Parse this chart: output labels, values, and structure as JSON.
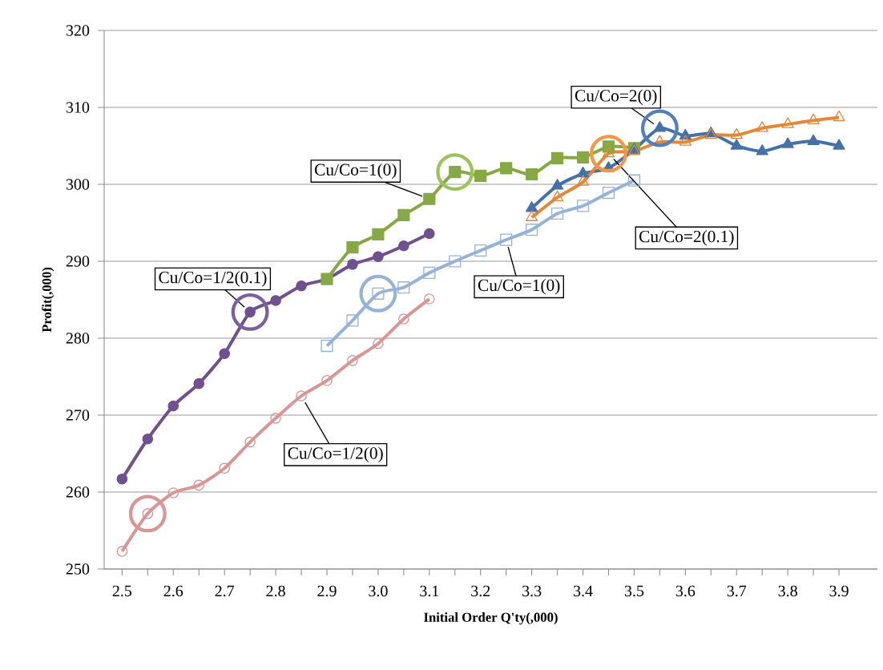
{
  "chart_data": {
    "type": "line",
    "xlabel": "Initial Order Q'ty(,000)",
    "ylabel": "Profit(,000)",
    "xlim": [
      2.465,
      3.975
    ],
    "ylim": [
      250,
      320
    ],
    "xticks": [
      2.5,
      {
        "value": 2.55,
        "label": null
      },
      2.6,
      {
        "value": 2.65,
        "label": null
      },
      2.7,
      {
        "value": 2.75,
        "label": null
      },
      2.8,
      {
        "value": 2.85,
        "label": null
      },
      2.9,
      {
        "value": 2.95,
        "label": null
      },
      {
        "value": 3.0,
        "label": "3.0"
      },
      {
        "value": 3.05,
        "label": null
      },
      3.1,
      {
        "value": 3.15,
        "label": null
      },
      3.2,
      {
        "value": 3.25,
        "label": null
      },
      3.3,
      {
        "value": 3.35,
        "label": null
      },
      3.4,
      {
        "value": 3.45,
        "label": null
      },
      3.5,
      {
        "value": 3.55,
        "label": null
      },
      3.6,
      {
        "value": 3.65,
        "label": null
      },
      3.7,
      {
        "value": 3.75,
        "label": null
      },
      3.8,
      {
        "value": 3.85,
        "label": null
      },
      3.9
    ],
    "yticks": [
      250,
      260,
      270,
      280,
      290,
      300,
      310,
      320
    ],
    "grid": "y",
    "legend": false,
    "line_style": "solid",
    "series": [
      {
        "name": "Cu/Co=1/2(0.1)",
        "color": "#70508f",
        "marker": "circle",
        "x": [
          2.5,
          2.55,
          2.6,
          2.65,
          2.7,
          2.75,
          2.8,
          2.85,
          2.9,
          2.95,
          3.0,
          3.05,
          3.1
        ],
        "values": [
          261.7,
          266.9,
          271.2,
          274.1,
          278.0,
          283.4,
          284.9,
          286.8,
          287.7,
          289.6,
          290.6,
          292.0,
          293.6
        ]
      },
      {
        "name": "Cu/Co=1/2(0)",
        "color": "#d99694",
        "marker": "circle",
        "x": [
          2.5,
          2.55,
          2.6,
          2.65,
          2.7,
          2.75,
          2.8,
          2.85,
          2.9,
          2.95,
          3.0,
          3.05,
          3.1
        ],
        "values": [
          252.3,
          257.2,
          259.9,
          260.9,
          263.1,
          266.5,
          269.6,
          272.5,
          274.5,
          277.1,
          279.3,
          282.5,
          285.1
        ]
      },
      {
        "name": "Cu/Co=1(0)",
        "color": "#86a845",
        "marker": "square",
        "x": [
          2.9,
          2.95,
          3.0,
          3.05,
          3.1,
          3.15,
          3.2,
          3.25,
          3.3,
          3.35,
          3.4,
          3.45,
          3.5
        ],
        "values": [
          287.7,
          291.8,
          293.5,
          296.0,
          298.1,
          301.6,
          301.1,
          302.1,
          301.3,
          303.4,
          303.5,
          304.9,
          304.7
        ]
      },
      {
        "name": "Cu/Co=1(0)",
        "color": "#95b3d7",
        "marker": "square",
        "x": [
          2.9,
          2.95,
          3.0,
          3.05,
          3.1,
          3.15,
          3.2,
          3.25,
          3.3,
          3.35,
          3.4,
          3.45,
          3.5
        ],
        "values": [
          279.0,
          282.3,
          285.8,
          286.6,
          288.5,
          290.0,
          291.4,
          292.8,
          294.1,
          296.2,
          297.2,
          298.9,
          300.5
        ]
      },
      {
        "name": "Cu/Co=2(0)",
        "color": "#4472a8",
        "marker": "triangle",
        "x": [
          3.3,
          3.35,
          3.4,
          3.45,
          3.5,
          3.55,
          3.6,
          3.65,
          3.7,
          3.75,
          3.8,
          3.85,
          3.9
        ],
        "values": [
          296.9,
          299.8,
          301.4,
          302.1,
          304.5,
          307.3,
          306.3,
          306.6,
          305.0,
          304.3,
          305.2,
          305.6,
          305.0
        ]
      },
      {
        "name": "Cu/Co=2(0.1)",
        "color": "#e4873a",
        "marker": "triangle",
        "x": [
          3.3,
          3.35,
          3.4,
          3.45,
          3.5,
          3.55,
          3.6,
          3.65,
          3.7,
          3.75,
          3.8,
          3.85,
          3.9
        ],
        "values": [
          295.7,
          298.3,
          300.3,
          304.0,
          304.3,
          305.5,
          305.5,
          306.4,
          306.4,
          307.3,
          307.8,
          308.3,
          308.7
        ]
      },
      {
        "type": "scatter",
        "marker": "circle",
        "colors": [
          "#7b5fa3",
          "#d99694",
          "#9bc35a",
          "#95b3d7",
          "#4f81bd",
          "#f79646"
        ],
        "x": [
          2.75,
          2.55,
          3.15,
          3.0,
          3.55,
          3.45
        ],
        "values": [
          283.4,
          257.2,
          301.6,
          285.8,
          307.3,
          304.0
        ]
      }
    ]
  }
}
